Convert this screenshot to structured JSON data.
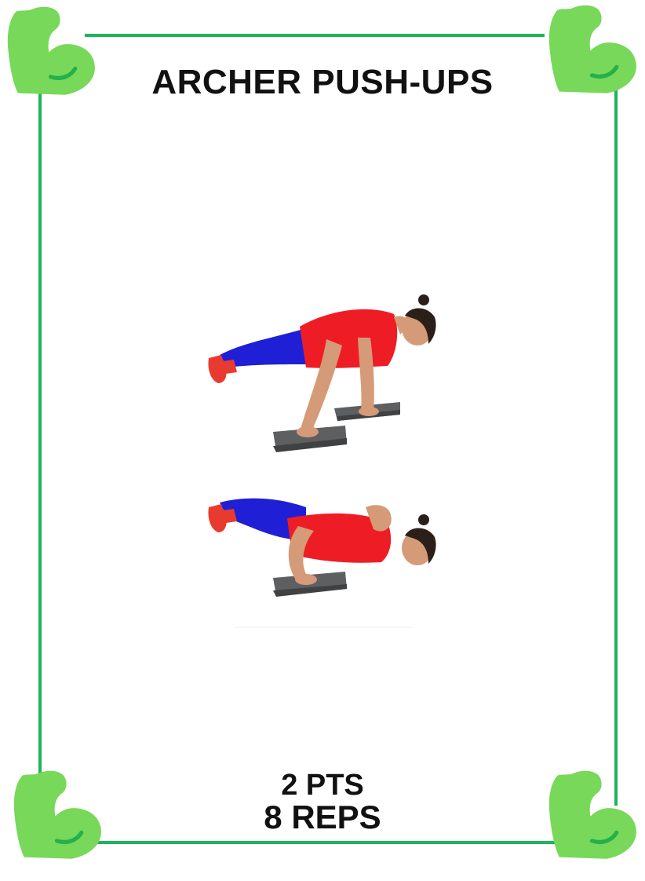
{
  "card": {
    "title": "ARCHER PUSH-UPS",
    "points": "2 PTS",
    "reps": "8 REPS"
  },
  "colors": {
    "border": "#1fb45a",
    "corner_icon": "#77d85a",
    "shirt": "#ee1d25",
    "pants": "#1f1fd6",
    "skin": "#d59a77",
    "hair": "#2b1f1a",
    "shoe": "#e93a2f",
    "pad": "#5d5f61"
  },
  "icons": {
    "corner": "flexed-biceps-icon"
  }
}
